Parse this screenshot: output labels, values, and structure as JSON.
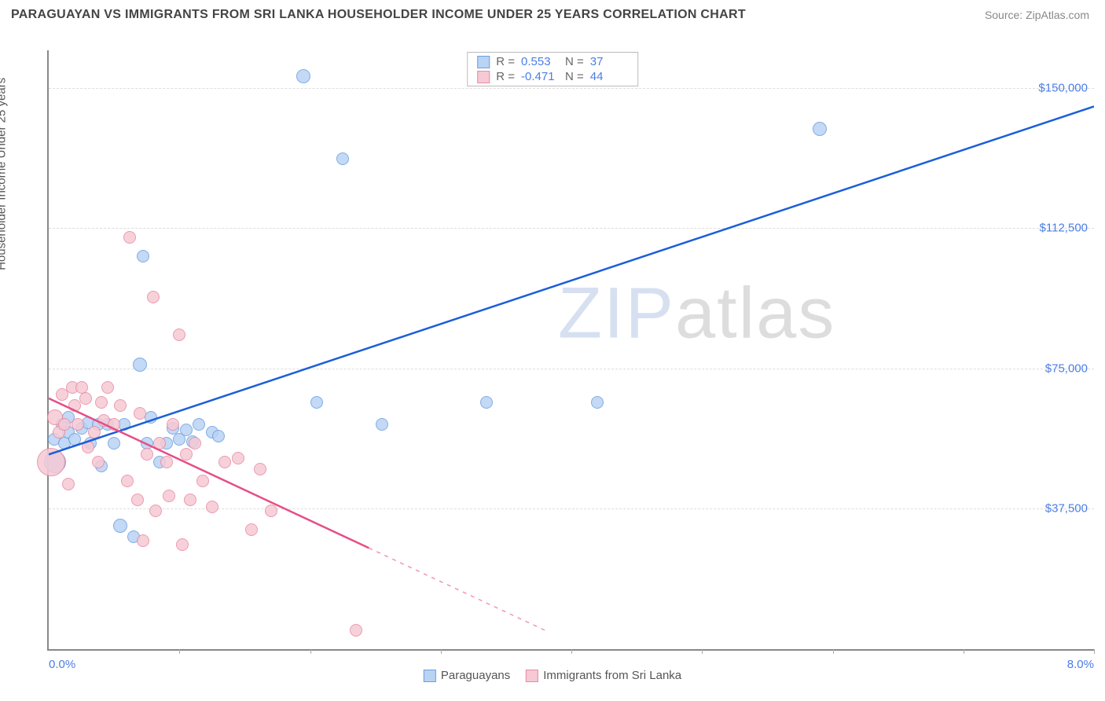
{
  "header": {
    "title": "PARAGUAYAN VS IMMIGRANTS FROM SRI LANKA HOUSEHOLDER INCOME UNDER 25 YEARS CORRELATION CHART",
    "source": "Source: ZipAtlas.com"
  },
  "chart": {
    "type": "scatter",
    "y_axis_label": "Householder Income Under 25 years",
    "watermark": "ZIPatlas",
    "x_axis": {
      "min": 0.0,
      "max": 8.0,
      "left_label": "0.0%",
      "right_label": "8.0%",
      "ticks": [
        0,
        1,
        2,
        3,
        4,
        5,
        6,
        7,
        8
      ]
    },
    "y_axis": {
      "min": 0,
      "max": 160000,
      "ticks": [
        37500,
        75000,
        112500,
        150000
      ],
      "tick_labels": [
        "$37,500",
        "$75,000",
        "$112,500",
        "$150,000"
      ]
    },
    "background_color": "#ffffff",
    "grid_color": "#dddddd",
    "series": [
      {
        "name": "Paraguayans",
        "color_fill": "#b9d3f4",
        "color_stroke": "#6c9fe0",
        "trend_color": "#1b5fd8",
        "r_label": "R =",
        "r_value": "0.553",
        "n_label": "N =",
        "n_value": "37",
        "trend": {
          "x1": 0.0,
          "y1": 52000,
          "x2": 8.0,
          "y2": 145000,
          "solid_until_x": 8.0
        },
        "points": [
          {
            "x": 0.04,
            "y": 56000,
            "r": 8
          },
          {
            "x": 0.05,
            "y": 50000,
            "r": 14
          },
          {
            "x": 0.1,
            "y": 60000,
            "r": 8
          },
          {
            "x": 0.12,
            "y": 55000,
            "r": 8
          },
          {
            "x": 0.15,
            "y": 62000,
            "r": 8
          },
          {
            "x": 0.15,
            "y": 58000,
            "r": 8
          },
          {
            "x": 0.2,
            "y": 56000,
            "r": 8
          },
          {
            "x": 0.25,
            "y": 59000,
            "r": 8
          },
          {
            "x": 0.3,
            "y": 60500,
            "r": 8
          },
          {
            "x": 0.32,
            "y": 55000,
            "r": 8
          },
          {
            "x": 0.38,
            "y": 60000,
            "r": 8
          },
          {
            "x": 0.4,
            "y": 49000,
            "r": 8
          },
          {
            "x": 0.45,
            "y": 60000,
            "r": 8
          },
          {
            "x": 0.5,
            "y": 55000,
            "r": 8
          },
          {
            "x": 0.55,
            "y": 33000,
            "r": 9
          },
          {
            "x": 0.58,
            "y": 60000,
            "r": 8
          },
          {
            "x": 0.7,
            "y": 76000,
            "r": 9
          },
          {
            "x": 0.72,
            "y": 105000,
            "r": 8
          },
          {
            "x": 0.75,
            "y": 55000,
            "r": 8
          },
          {
            "x": 0.78,
            "y": 62000,
            "r": 8
          },
          {
            "x": 0.85,
            "y": 50000,
            "r": 8
          },
          {
            "x": 0.9,
            "y": 55000,
            "r": 8
          },
          {
            "x": 0.95,
            "y": 59000,
            "r": 8
          },
          {
            "x": 1.0,
            "y": 56000,
            "r": 8
          },
          {
            "x": 1.05,
            "y": 58500,
            "r": 8
          },
          {
            "x": 1.1,
            "y": 55500,
            "r": 8
          },
          {
            "x": 1.15,
            "y": 60000,
            "r": 8
          },
          {
            "x": 1.25,
            "y": 58000,
            "r": 8
          },
          {
            "x": 1.3,
            "y": 57000,
            "r": 8
          },
          {
            "x": 1.95,
            "y": 153000,
            "r": 9
          },
          {
            "x": 2.05,
            "y": 66000,
            "r": 8
          },
          {
            "x": 2.25,
            "y": 131000,
            "r": 8
          },
          {
            "x": 2.55,
            "y": 60000,
            "r": 8
          },
          {
            "x": 3.35,
            "y": 66000,
            "r": 8
          },
          {
            "x": 4.2,
            "y": 66000,
            "r": 8
          },
          {
            "x": 5.9,
            "y": 139000,
            "r": 9
          },
          {
            "x": 0.65,
            "y": 30000,
            "r": 8
          }
        ]
      },
      {
        "name": "Immigrants from Sri Lanka",
        "color_fill": "#f6c9d4",
        "color_stroke": "#e88aa3",
        "trend_color": "#e64e87",
        "r_label": "R =",
        "r_value": "-0.471",
        "n_label": "N =",
        "n_value": "44",
        "trend": {
          "x1": 0.0,
          "y1": 67000,
          "x2": 3.8,
          "y2": 5000,
          "solid_until_x": 2.45
        },
        "points": [
          {
            "x": 0.02,
            "y": 50000,
            "r": 18
          },
          {
            "x": 0.05,
            "y": 62000,
            "r": 10
          },
          {
            "x": 0.08,
            "y": 58000,
            "r": 8
          },
          {
            "x": 0.1,
            "y": 68000,
            "r": 8
          },
          {
            "x": 0.12,
            "y": 60000,
            "r": 8
          },
          {
            "x": 0.15,
            "y": 44000,
            "r": 8
          },
          {
            "x": 0.18,
            "y": 70000,
            "r": 8
          },
          {
            "x": 0.2,
            "y": 65000,
            "r": 8
          },
          {
            "x": 0.22,
            "y": 60000,
            "r": 8
          },
          {
            "x": 0.25,
            "y": 70000,
            "r": 8
          },
          {
            "x": 0.28,
            "y": 67000,
            "r": 8
          },
          {
            "x": 0.3,
            "y": 54000,
            "r": 8
          },
          {
            "x": 0.35,
            "y": 58000,
            "r": 8
          },
          {
            "x": 0.38,
            "y": 50000,
            "r": 8
          },
          {
            "x": 0.4,
            "y": 66000,
            "r": 8
          },
          {
            "x": 0.42,
            "y": 61000,
            "r": 8
          },
          {
            "x": 0.45,
            "y": 70000,
            "r": 8
          },
          {
            "x": 0.5,
            "y": 60000,
            "r": 8
          },
          {
            "x": 0.55,
            "y": 65000,
            "r": 8
          },
          {
            "x": 0.6,
            "y": 45000,
            "r": 8
          },
          {
            "x": 0.62,
            "y": 110000,
            "r": 8
          },
          {
            "x": 0.68,
            "y": 40000,
            "r": 8
          },
          {
            "x": 0.7,
            "y": 63000,
            "r": 8
          },
          {
            "x": 0.72,
            "y": 29000,
            "r": 8
          },
          {
            "x": 0.75,
            "y": 52000,
            "r": 8
          },
          {
            "x": 0.8,
            "y": 94000,
            "r": 8
          },
          {
            "x": 0.82,
            "y": 37000,
            "r": 8
          },
          {
            "x": 0.85,
            "y": 55000,
            "r": 8
          },
          {
            "x": 0.9,
            "y": 50000,
            "r": 8
          },
          {
            "x": 0.92,
            "y": 41000,
            "r": 8
          },
          {
            "x": 0.95,
            "y": 60000,
            "r": 8
          },
          {
            "x": 1.0,
            "y": 84000,
            "r": 8
          },
          {
            "x": 1.02,
            "y": 28000,
            "r": 8
          },
          {
            "x": 1.05,
            "y": 52000,
            "r": 8
          },
          {
            "x": 1.08,
            "y": 40000,
            "r": 8
          },
          {
            "x": 1.12,
            "y": 55000,
            "r": 8
          },
          {
            "x": 1.18,
            "y": 45000,
            "r": 8
          },
          {
            "x": 1.25,
            "y": 38000,
            "r": 8
          },
          {
            "x": 1.35,
            "y": 50000,
            "r": 8
          },
          {
            "x": 1.45,
            "y": 51000,
            "r": 8
          },
          {
            "x": 1.55,
            "y": 32000,
            "r": 8
          },
          {
            "x": 1.62,
            "y": 48000,
            "r": 8
          },
          {
            "x": 1.7,
            "y": 37000,
            "r": 8
          },
          {
            "x": 2.35,
            "y": 5000,
            "r": 8
          }
        ]
      }
    ],
    "bottom_legend": [
      {
        "label": "Paraguayans",
        "fill": "#b9d3f4",
        "stroke": "#6c9fe0"
      },
      {
        "label": "Immigrants from Sri Lanka",
        "fill": "#f6c9d4",
        "stroke": "#e88aa3"
      }
    ]
  }
}
